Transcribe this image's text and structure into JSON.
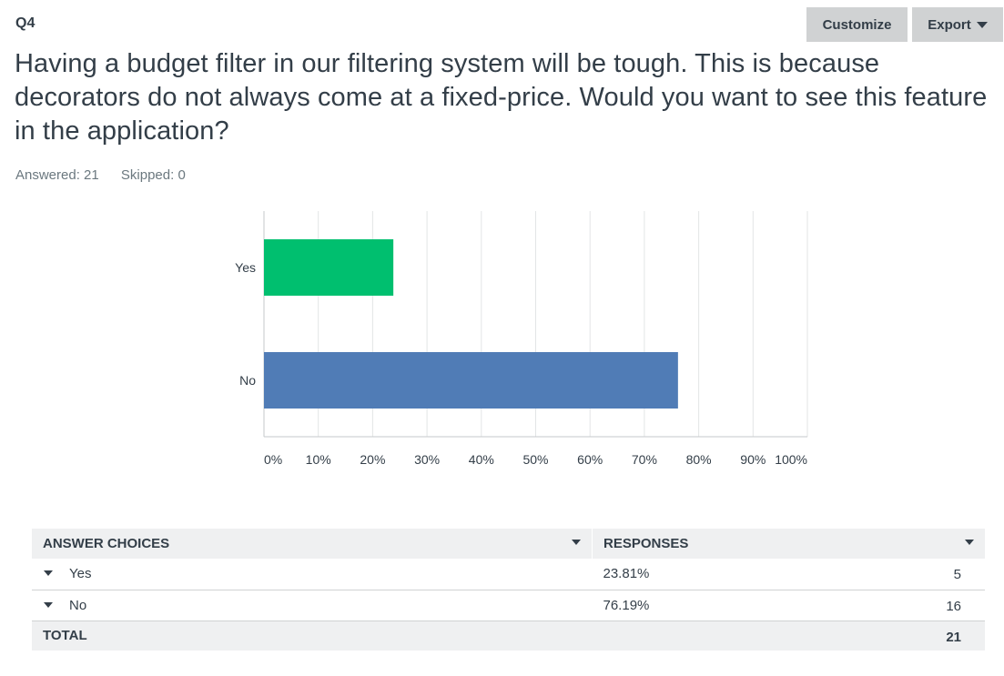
{
  "header": {
    "question_number": "Q4",
    "customize_label": "Customize",
    "export_label": "Export"
  },
  "question": {
    "text": "Having a budget filter in our filtering system will be tough. This is because decorators do not always come at a fixed-price. Would you want to see this feature in the application?"
  },
  "stats": {
    "answered": "Answered: 21",
    "skipped": "Skipped: 0"
  },
  "colors": {
    "yes_bar": "#00bf6f",
    "no_bar": "#507cb6",
    "grid": "#e3e5e6",
    "axis": "#c6c9cb",
    "table_header_bg": "#eff0f1"
  },
  "chart_data": {
    "type": "bar",
    "orientation": "horizontal",
    "categories": [
      "Yes",
      "No"
    ],
    "values": [
      23.81,
      76.19
    ],
    "xlim": [
      0,
      100
    ],
    "x_ticks": [
      "0%",
      "10%",
      "20%",
      "30%",
      "40%",
      "50%",
      "60%",
      "70%",
      "80%",
      "90%",
      "100%"
    ],
    "grid": true,
    "title": "",
    "xlabel": "",
    "ylabel": ""
  },
  "table": {
    "headers": {
      "choices": "ANSWER CHOICES",
      "responses": "RESPONSES"
    },
    "rows": [
      {
        "choice": "Yes",
        "percent": "23.81%",
        "count": "5"
      },
      {
        "choice": "No",
        "percent": "76.19%",
        "count": "16"
      }
    ],
    "total": {
      "label": "TOTAL",
      "count": "21"
    }
  }
}
